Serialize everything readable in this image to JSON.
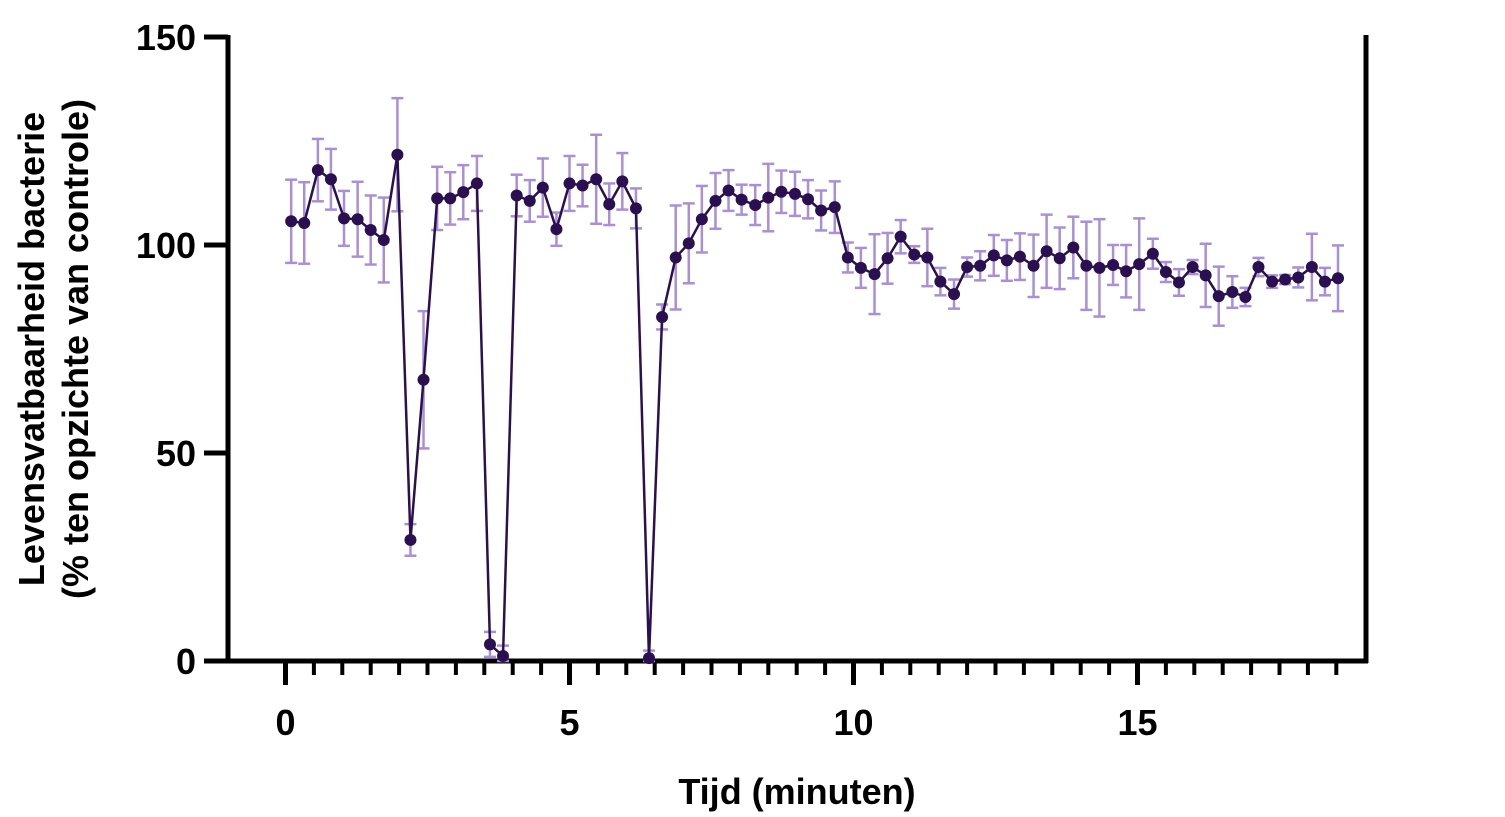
{
  "chart_data": {
    "type": "line",
    "xlabel": "Tijd (minuten)",
    "ylabel_line1": "Levensvatbaarheid bacterie",
    "ylabel_line2": "(% ten opzichte van controle)",
    "xlim": [
      -1,
      19
    ],
    "ylim": [
      0,
      150
    ],
    "x_major_ticks": [
      0,
      5,
      10,
      15
    ],
    "x_minor_step": 0.5,
    "y_major_ticks": [
      0,
      50,
      100,
      150
    ],
    "x_tick_labels": [
      "0",
      "5",
      "10",
      "15"
    ],
    "y_tick_labels": [
      "0",
      "50",
      "100",
      "150"
    ],
    "grid": false,
    "colors": {
      "line": "#2a1050",
      "marker": "#2a1050",
      "error_bar": "#a98fd8",
      "axis": "#000000"
    },
    "series": [
      {
        "x": [
          0.1,
          0.33,
          0.57,
          0.8,
          1.03,
          1.27,
          1.5,
          1.73,
          1.97,
          2.2,
          2.43,
          2.67,
          2.9,
          3.13,
          3.37,
          3.6,
          3.83,
          4.07,
          4.3,
          4.53,
          4.77,
          5.0,
          5.23,
          5.47,
          5.7,
          5.93,
          6.17,
          6.4,
          6.63,
          6.87,
          7.1,
          7.33,
          7.57,
          7.8,
          8.03,
          8.27,
          8.5,
          8.73,
          8.97,
          9.2,
          9.43,
          9.67,
          9.9,
          10.13,
          10.37,
          10.6,
          10.83,
          11.07,
          11.3,
          11.53,
          11.77,
          12.0,
          12.23,
          12.47,
          12.7,
          12.93,
          13.17,
          13.4,
          13.63,
          13.87,
          14.1,
          14.33,
          14.57,
          14.8,
          15.03,
          15.27,
          15.5,
          15.73,
          15.97,
          16.2,
          16.43,
          16.67,
          16.9,
          17.13,
          17.37,
          17.6,
          17.83,
          18.07,
          18.3,
          18.53
        ],
        "y": [
          105.7,
          105.3,
          118.0,
          115.8,
          106.4,
          106.2,
          103.6,
          101.2,
          121.7,
          29.1,
          67.6,
          111.2,
          111.2,
          112.7,
          114.8,
          4.0,
          1.2,
          111.9,
          110.6,
          113.8,
          103.8,
          114.8,
          114.3,
          115.8,
          109.8,
          115.3,
          108.8,
          0.7,
          82.7,
          97.0,
          100.4,
          106.2,
          110.6,
          113.1,
          110.9,
          109.6,
          111.4,
          112.8,
          112.3,
          111.0,
          108.3,
          109.1,
          97.0,
          94.5,
          93.0,
          96.8,
          102.0,
          97.7,
          97.0,
          91.2,
          88.2,
          94.7,
          95.0,
          97.5,
          96.3,
          97.2,
          95.0,
          98.5,
          96.8,
          99.4,
          95.0,
          94.5,
          95.2,
          93.7,
          95.4,
          97.9,
          93.5,
          91.0,
          94.7,
          92.7,
          87.7,
          88.7,
          87.5,
          94.7,
          91.2,
          91.7,
          92.2,
          94.7,
          91.2,
          92.0
        ],
        "err": [
          10.0,
          9.8,
          7.5,
          7.3,
          6.6,
          9.0,
          8.3,
          10.2,
          13.6,
          3.8,
          16.5,
          7.6,
          6.3,
          6.5,
          6.6,
          3.0,
          2.5,
          5.0,
          5.0,
          7.0,
          4.0,
          6.6,
          5.0,
          10.7,
          5.0,
          6.8,
          4.8,
          1.8,
          3.0,
          12.5,
          9.6,
          8.0,
          6.7,
          4.9,
          3.6,
          4.8,
          8.1,
          5.1,
          5.3,
          4.6,
          4.8,
          6.2,
          3.6,
          4.8,
          9.6,
          6.1,
          4.0,
          2.0,
          6.9,
          3.3,
          3.5,
          2.3,
          3.5,
          4.9,
          4.9,
          5.6,
          7.5,
          8.8,
          7.4,
          7.4,
          10.6,
          11.7,
          4.8,
          6.3,
          11.0,
          3.6,
          2.4,
          3.2,
          1.7,
          7.6,
          7.1,
          3.8,
          2.2,
          2.2,
          1.5,
          1.1,
          2.4,
          8.0,
          3.3,
          7.9
        ]
      }
    ]
  }
}
